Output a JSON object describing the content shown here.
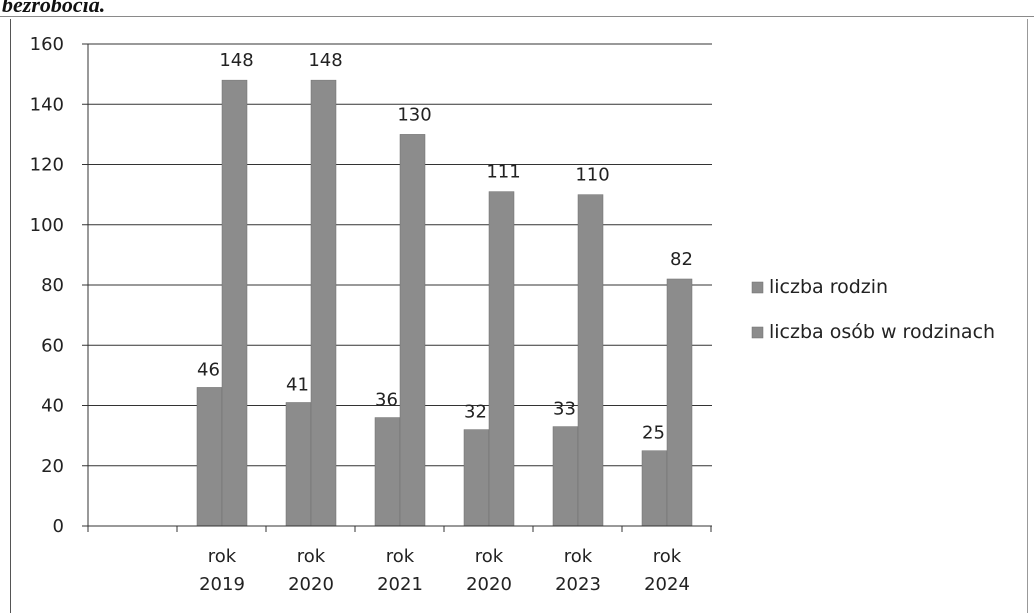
{
  "heading": "bezrobocia.",
  "chart_data": {
    "type": "bar",
    "categories": [
      [
        "rok",
        "2019"
      ],
      [
        "rok",
        "2020"
      ],
      [
        "rok",
        "2021"
      ],
      [
        "rok",
        "2020"
      ],
      [
        "rok",
        "2023"
      ],
      [
        "rok",
        "2024"
      ]
    ],
    "series": [
      {
        "name": "liczba rodzin",
        "values": [
          46,
          41,
          36,
          32,
          33,
          25
        ]
      },
      {
        "name": "liczba osób w rodzinach",
        "values": [
          148,
          148,
          130,
          111,
          110,
          82
        ]
      }
    ],
    "ylim": [
      0,
      160
    ],
    "yticks": [
      0,
      20,
      40,
      60,
      80,
      100,
      120,
      140,
      160
    ],
    "grid": true,
    "legend_position": "right",
    "data_labels": true,
    "colors": {
      "bar": "#8c8c8c",
      "grid": "#333333",
      "axis": "#333333"
    }
  }
}
